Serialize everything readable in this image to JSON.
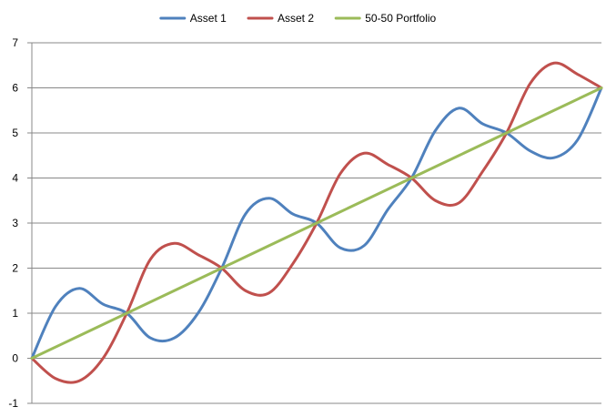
{
  "chart_data": {
    "type": "line",
    "title": "",
    "xlabel": "",
    "ylabel": "",
    "ylim": [
      -1,
      7
    ],
    "yticks": [
      "-1",
      "0",
      "1",
      "2",
      "3",
      "4",
      "5",
      "6",
      "7"
    ],
    "xlim": [
      0,
      6
    ],
    "grid": "horizontal",
    "legend_position": "top",
    "series": [
      {
        "name": "Asset 1",
        "color": "#4F81BD",
        "points": [
          [
            0,
            0
          ],
          [
            0.25,
            1.15
          ],
          [
            0.5,
            1.55
          ],
          [
            0.75,
            1.2
          ],
          [
            1,
            1
          ],
          [
            1.25,
            0.45
          ],
          [
            1.5,
            0.45
          ],
          [
            1.75,
            1.0
          ],
          [
            2,
            2
          ],
          [
            2.25,
            3.2
          ],
          [
            2.5,
            3.55
          ],
          [
            2.75,
            3.2
          ],
          [
            3,
            3
          ],
          [
            3.25,
            2.45
          ],
          [
            3.5,
            2.5
          ],
          [
            3.75,
            3.3
          ],
          [
            4,
            4
          ],
          [
            4.25,
            5.05
          ],
          [
            4.5,
            5.55
          ],
          [
            4.75,
            5.2
          ],
          [
            5,
            5
          ],
          [
            5.25,
            4.6
          ],
          [
            5.5,
            4.45
          ],
          [
            5.75,
            4.85
          ],
          [
            6,
            6
          ]
        ]
      },
      {
        "name": "Asset 2",
        "color": "#C0504D",
        "points": [
          [
            0,
            0
          ],
          [
            0.25,
            -0.45
          ],
          [
            0.5,
            -0.5
          ],
          [
            0.75,
            0.0
          ],
          [
            1,
            1
          ],
          [
            1.25,
            2.2
          ],
          [
            1.5,
            2.55
          ],
          [
            1.75,
            2.3
          ],
          [
            2,
            2
          ],
          [
            2.25,
            1.5
          ],
          [
            2.5,
            1.45
          ],
          [
            2.75,
            2.1
          ],
          [
            3,
            3
          ],
          [
            3.25,
            4.1
          ],
          [
            3.5,
            4.55
          ],
          [
            3.75,
            4.3
          ],
          [
            4,
            4
          ],
          [
            4.25,
            3.5
          ],
          [
            4.5,
            3.45
          ],
          [
            4.75,
            4.15
          ],
          [
            5,
            5
          ],
          [
            5.25,
            6.1
          ],
          [
            5.5,
            6.55
          ],
          [
            5.75,
            6.3
          ],
          [
            6,
            6
          ]
        ]
      },
      {
        "name": "50-50 Portfolio",
        "color": "#9BBB59",
        "points": [
          [
            0,
            0
          ],
          [
            0.5,
            0.5
          ],
          [
            1,
            1
          ],
          [
            1.5,
            1.5
          ],
          [
            2,
            2
          ],
          [
            2.5,
            2.5
          ],
          [
            3,
            3
          ],
          [
            3.5,
            3.5
          ],
          [
            4,
            4
          ],
          [
            4.5,
            4.5
          ],
          [
            5,
            5
          ],
          [
            5.5,
            5.5
          ],
          [
            6,
            6
          ]
        ]
      }
    ]
  }
}
